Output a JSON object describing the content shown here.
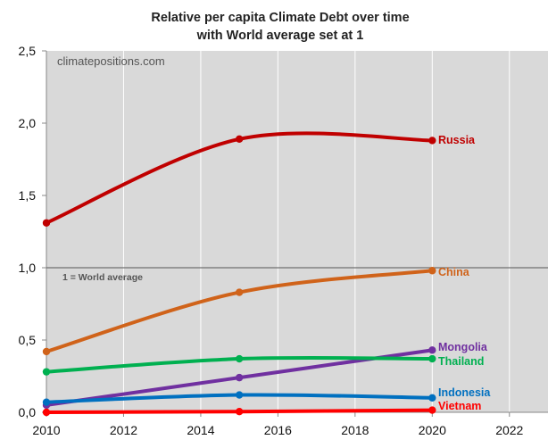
{
  "chart_data": {
    "type": "line",
    "title": [
      "Relative per capita Climate Debt over time",
      "with World average set at 1"
    ],
    "watermark": "climatepositions.com",
    "xlabel": "",
    "ylabel": "",
    "xlim": [
      2010,
      2023
    ],
    "ylim": [
      0,
      2.5
    ],
    "x_ticks": [
      "2010",
      "2012",
      "2014",
      "2016",
      "2018",
      "2020",
      "2022"
    ],
    "y_ticks": [
      "0,0",
      "0,5",
      "1,0",
      "1,5",
      "2,0",
      "2,5"
    ],
    "grid": "vertical",
    "reference_line": {
      "value": 1.0,
      "label": "1 = World average"
    },
    "x": [
      2010,
      2015,
      2020
    ],
    "series": [
      {
        "name": "Russia",
        "color": "#c00000",
        "values": [
          1.31,
          1.89,
          1.88
        ]
      },
      {
        "name": "China",
        "color": "#d0631a",
        "values": [
          0.42,
          0.83,
          0.98
        ]
      },
      {
        "name": "Mongolia",
        "color": "#7030a0",
        "values": [
          0.05,
          0.24,
          0.43
        ]
      },
      {
        "name": "Thailand",
        "color": "#00b050",
        "values": [
          0.28,
          0.37,
          0.37
        ]
      },
      {
        "name": "Indonesia",
        "color": "#0070c0",
        "values": [
          0.07,
          0.12,
          0.1
        ]
      },
      {
        "name": "Vietnam",
        "color": "#ff0000",
        "values": [
          0.0,
          0.005,
          0.015
        ]
      }
    ]
  }
}
